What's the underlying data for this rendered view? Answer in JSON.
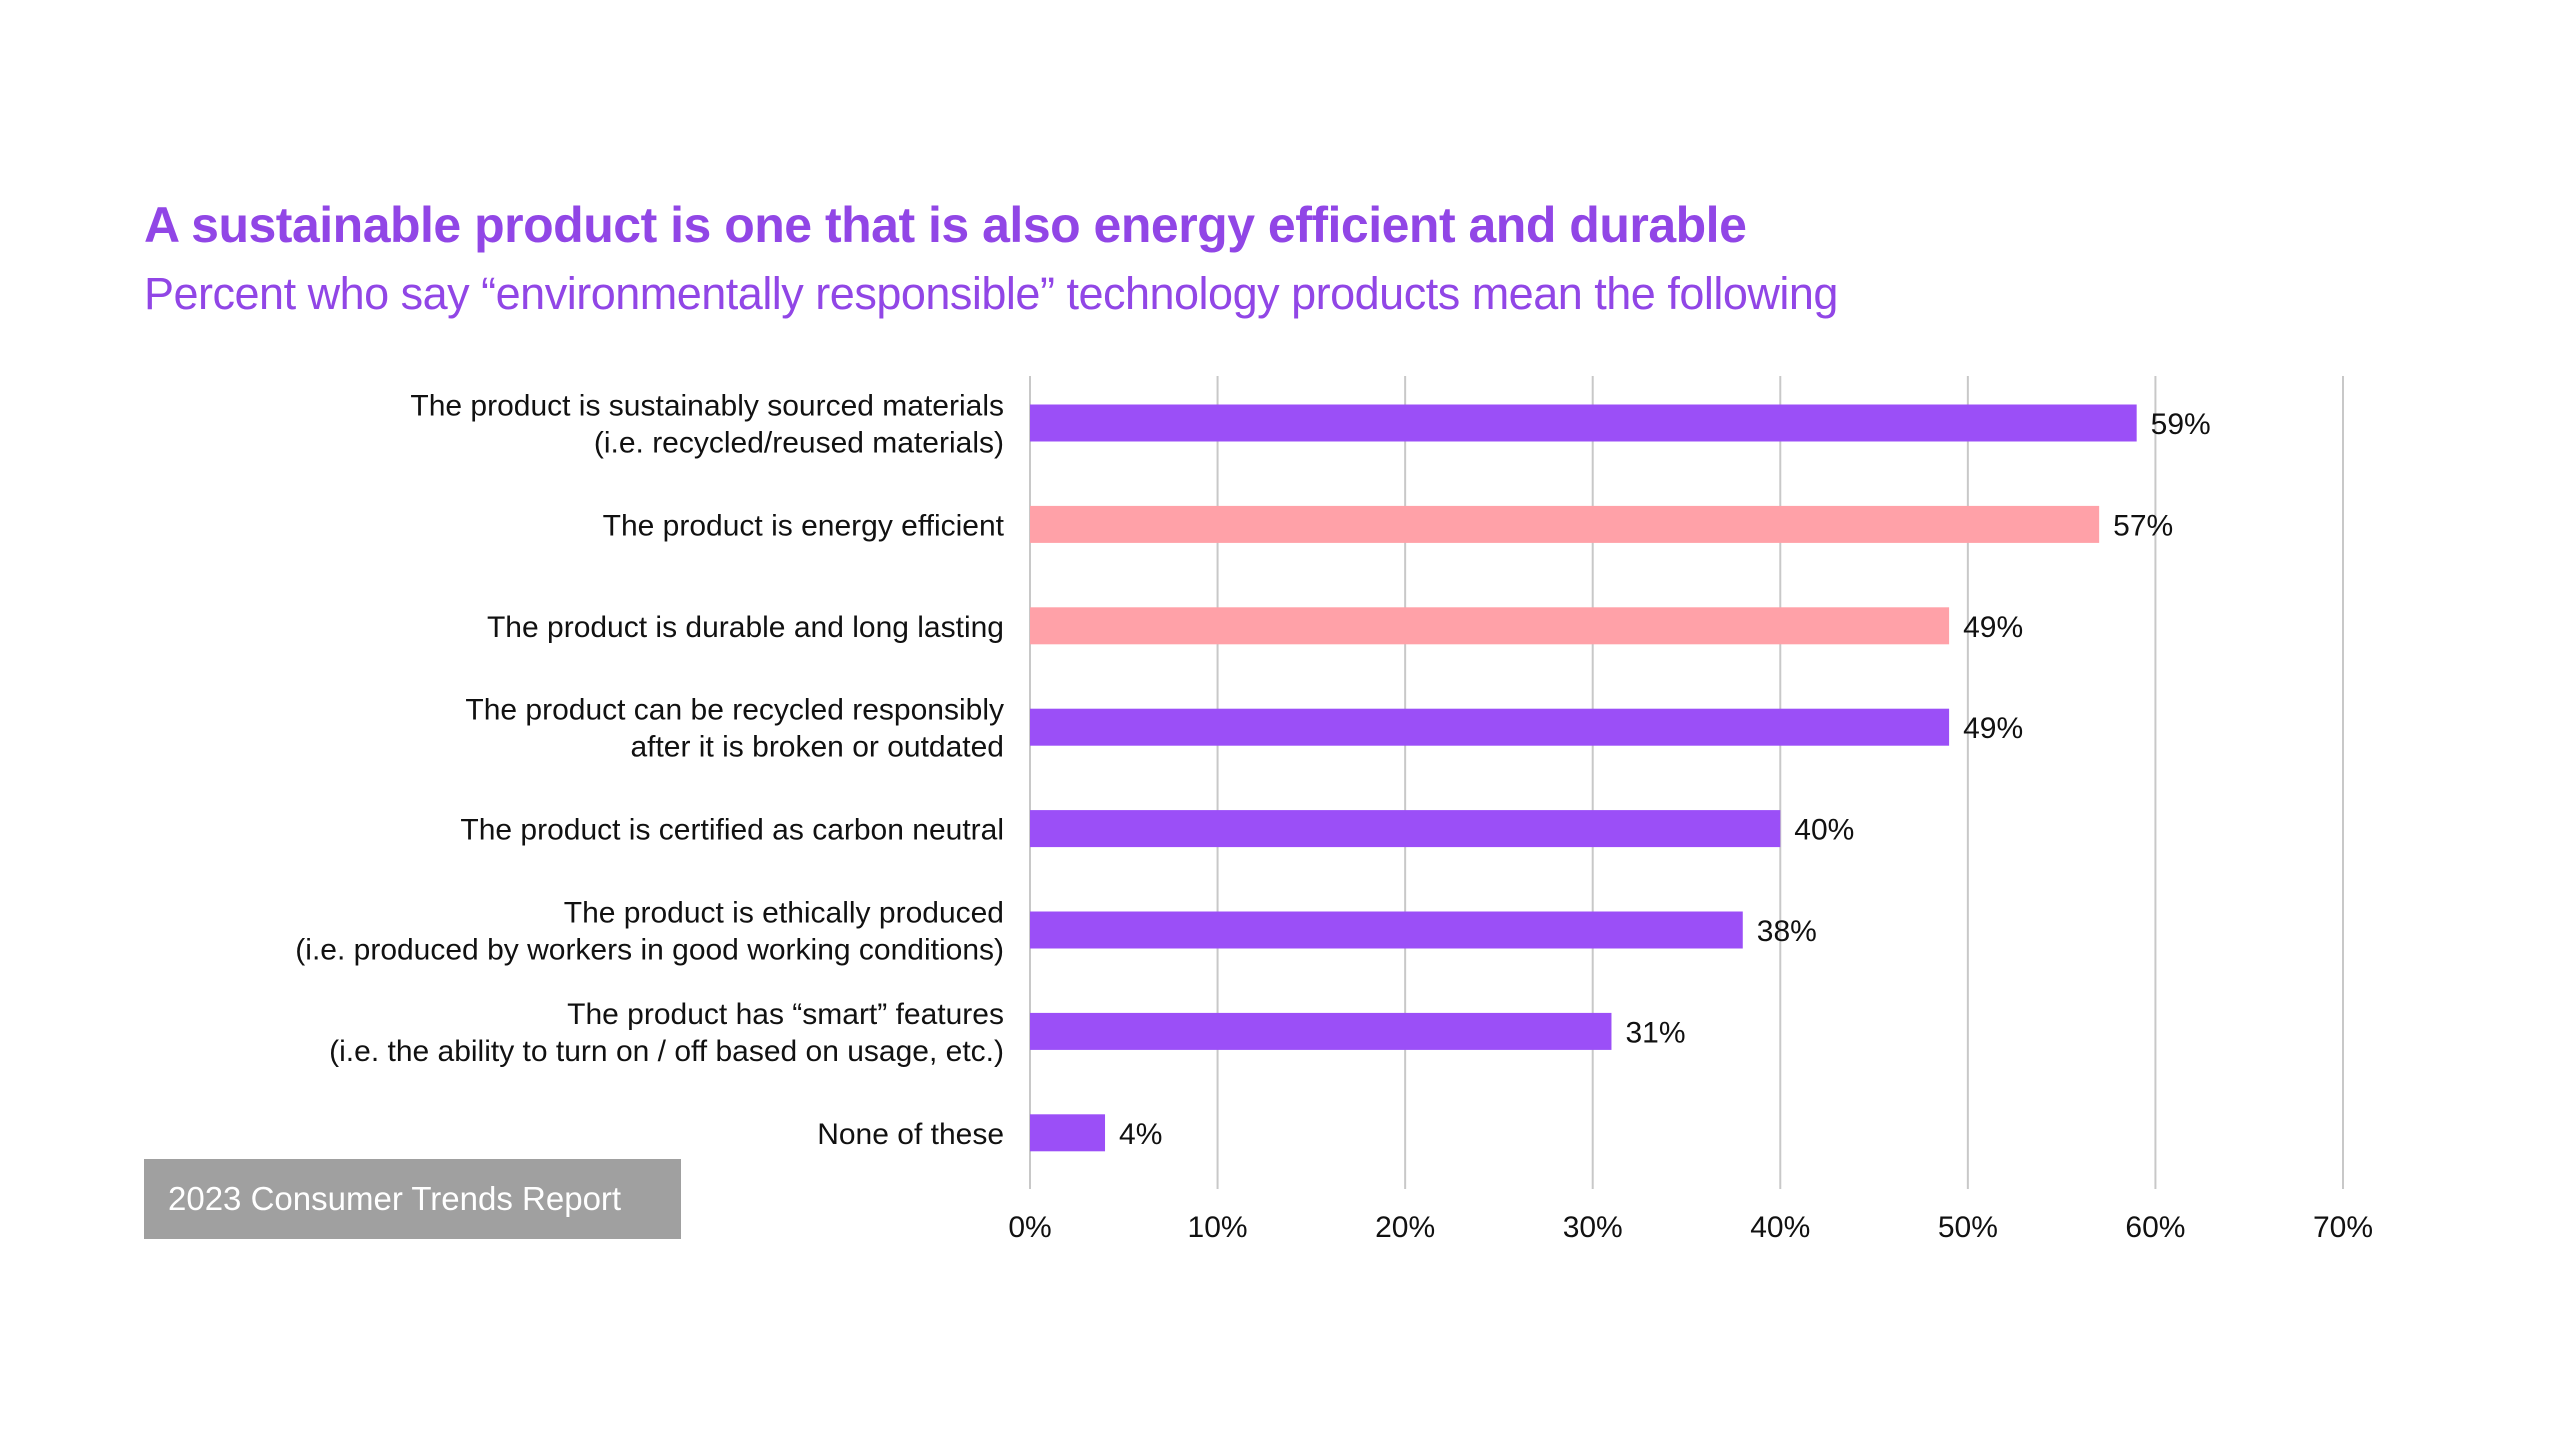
{
  "colors": {
    "title": "#9146e6",
    "purple": "#9b4ff7",
    "pink": "#ffa1a8",
    "grid": "#c8c8c8",
    "footer_bg": "#a0a0a0"
  },
  "footer": {
    "label": "2023 Consumer Trends Report"
  },
  "chart_data": {
    "type": "bar",
    "orientation": "horizontal",
    "title": "A sustainable product is one that is also energy efficient and durable",
    "subtitle": "Percent who say “environmentally responsible” technology products mean the following",
    "categories": [
      [
        "The product is sustainably sourced materials",
        "(i.e. recycled/reused materials)"
      ],
      [
        "The product is energy efficient"
      ],
      [
        "The product is durable and long lasting"
      ],
      [
        "The product can be recycled responsibly",
        "after it is broken or outdated"
      ],
      [
        "The product is certified as carbon neutral"
      ],
      [
        "The product is ethically produced",
        "(i.e. produced by workers in good working conditions)"
      ],
      [
        "The product has “smart” features",
        "(i.e. the ability to turn on / off based on usage, etc.)"
      ],
      [
        "None of these"
      ]
    ],
    "values": [
      59,
      57,
      49,
      49,
      40,
      38,
      31,
      4
    ],
    "data_labels": [
      "59%",
      "57%",
      "49%",
      "49%",
      "40%",
      "38%",
      "31%",
      "4%"
    ],
    "bar_colors": [
      "purple",
      "pink",
      "pink",
      "purple",
      "purple",
      "purple",
      "purple",
      "purple"
    ],
    "xlim": [
      0,
      70
    ],
    "xticks": [
      "0%",
      "10%",
      "20%",
      "30%",
      "40%",
      "50%",
      "60%",
      "70%"
    ],
    "grid": "vertical",
    "xlabel": "",
    "ylabel": ""
  }
}
